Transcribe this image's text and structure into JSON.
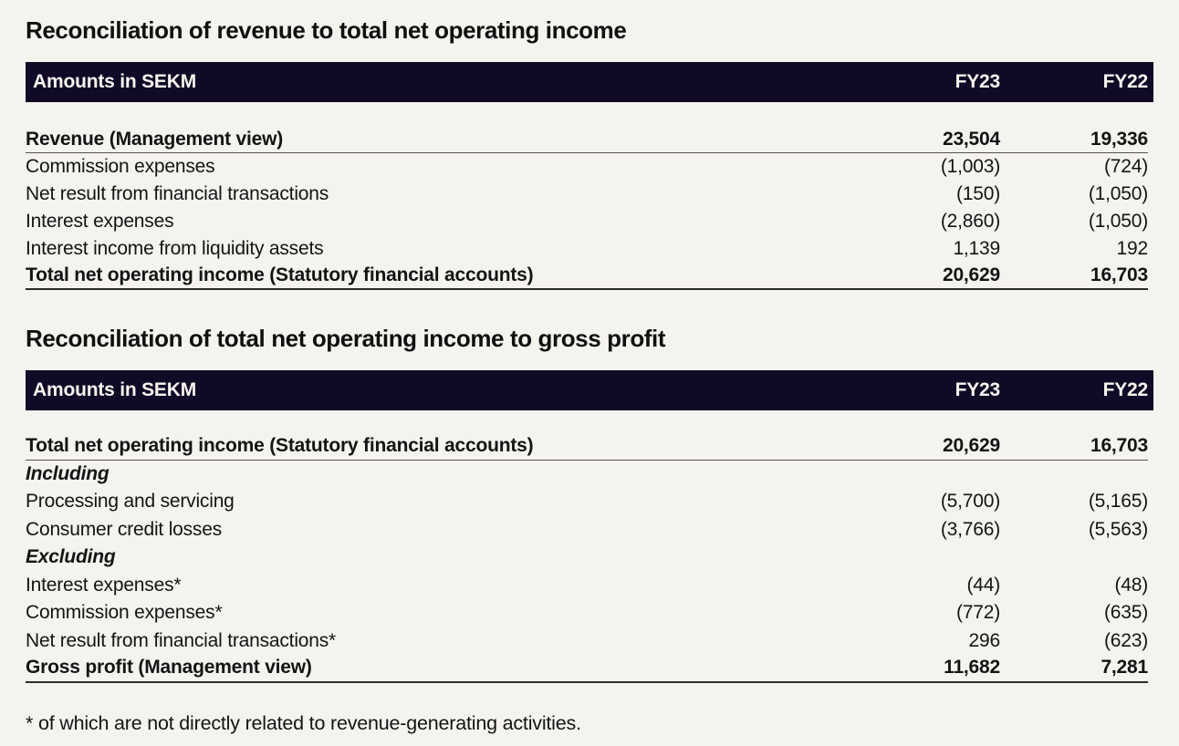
{
  "colors": {
    "page_background": "#f5f3ed",
    "header_bar_background": "#110a26",
    "header_bar_text": "#f7f5ef",
    "body_text": "#141414",
    "rule_thin": "#55524c",
    "rule_total": "#2c2a26"
  },
  "footnote": "* of which are not directly related to revenue-generating activities.",
  "section1": {
    "title": "Reconciliation of revenue to total net operating income",
    "table": {
      "header": {
        "label": "Amounts in SEKM",
        "col1": "FY23",
        "col2": "FY22"
      },
      "rows": [
        {
          "label": "Revenue (Management view)",
          "fy23": "23,504",
          "fy22": "19,336"
        },
        {
          "label": "Commission expenses",
          "fy23": "(1,003)",
          "fy22": "(724)"
        },
        {
          "label": "Net result from financial transactions",
          "fy23": "(150)",
          "fy22": "(1,050)"
        },
        {
          "label": "Interest expenses",
          "fy23": "(2,860)",
          "fy22": "(1,050)"
        },
        {
          "label": "Interest income from liquidity assets",
          "fy23": "1,139",
          "fy22": "192"
        },
        {
          "label": "Total net operating income (Statutory financial accounts)",
          "fy23": "20,629",
          "fy22": "16,703"
        }
      ]
    }
  },
  "section2": {
    "title": "Reconciliation of total net operating income to gross profit",
    "table": {
      "header": {
        "label": "Amounts in SEKM",
        "col1": "FY23",
        "col2": "FY22"
      },
      "rows": [
        {
          "label": "Total net operating income (Statutory financial accounts)",
          "fy23": "20,629",
          "fy22": "16,703"
        },
        {
          "label": "Including",
          "fy23": "",
          "fy22": ""
        },
        {
          "label": "Processing and servicing",
          "fy23": "(5,700)",
          "fy22": "(5,165)"
        },
        {
          "label": "Consumer credit losses",
          "fy23": "(3,766)",
          "fy22": "(5,563)"
        },
        {
          "label": "Excluding",
          "fy23": "",
          "fy22": ""
        },
        {
          "label": "Interest expenses*",
          "fy23": "(44)",
          "fy22": "(48)"
        },
        {
          "label": "Commission expenses*",
          "fy23": "(772)",
          "fy22": "(635)"
        },
        {
          "label": "Net result from financial transactions*",
          "fy23": "296",
          "fy22": "(623)"
        },
        {
          "label": "Gross profit (Management view)",
          "fy23": "11,682",
          "fy22": "7,281"
        }
      ]
    }
  },
  "chart_data": {
    "type": "table",
    "tables": [
      {
        "title": "Reconciliation of revenue to total net operating income",
        "columns": [
          "Amounts in SEKM",
          "FY23",
          "FY22"
        ],
        "rows": [
          [
            "Revenue (Management view)",
            23504,
            19336
          ],
          [
            "Commission expenses",
            -1003,
            -724
          ],
          [
            "Net result from financial transactions",
            -150,
            -1050
          ],
          [
            "Interest expenses",
            -2860,
            -1050
          ],
          [
            "Interest income from liquidity assets",
            1139,
            192
          ],
          [
            "Total net operating income (Statutory financial accounts)",
            20629,
            16703
          ]
        ]
      },
      {
        "title": "Reconciliation of total net operating income to gross profit",
        "columns": [
          "Amounts in SEKM",
          "FY23",
          "FY22"
        ],
        "rows": [
          [
            "Total net operating income (Statutory financial accounts)",
            20629,
            16703
          ],
          [
            "Including",
            null,
            null
          ],
          [
            "Processing and servicing",
            -5700,
            -5165
          ],
          [
            "Consumer credit losses",
            -3766,
            -5563
          ],
          [
            "Excluding",
            null,
            null
          ],
          [
            "Interest expenses*",
            -44,
            -48
          ],
          [
            "Commission expenses*",
            -772,
            -635
          ],
          [
            "Net result from financial transactions*",
            296,
            -623
          ],
          [
            "Gross profit (Management view)",
            11682,
            7281
          ]
        ]
      }
    ]
  }
}
